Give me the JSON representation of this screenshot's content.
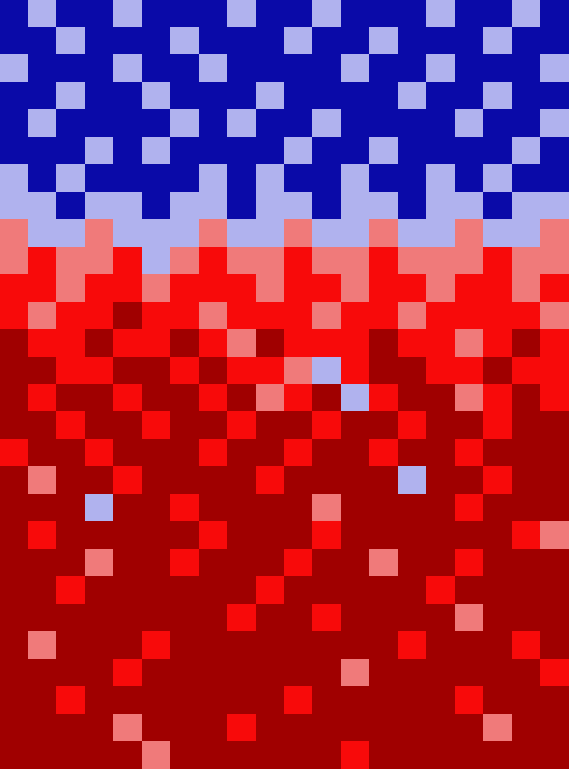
{
  "chart_data": {
    "type": "heatmap",
    "cells": [
      [
        0,
        1,
        0,
        0,
        1,
        0,
        0,
        0,
        1,
        0,
        0,
        1,
        0,
        0,
        0,
        1,
        0,
        0,
        1,
        0
      ],
      [
        0,
        0,
        1,
        0,
        0,
        0,
        1,
        0,
        0,
        0,
        1,
        0,
        0,
        1,
        0,
        0,
        0,
        1,
        0,
        0
      ],
      [
        1,
        0,
        0,
        0,
        1,
        0,
        0,
        1,
        0,
        0,
        0,
        0,
        1,
        0,
        0,
        1,
        0,
        0,
        0,
        1
      ],
      [
        0,
        0,
        1,
        0,
        0,
        1,
        0,
        0,
        0,
        1,
        0,
        0,
        0,
        0,
        1,
        0,
        0,
        1,
        0,
        0
      ],
      [
        0,
        1,
        0,
        0,
        0,
        0,
        1,
        0,
        1,
        0,
        0,
        1,
        0,
        0,
        0,
        0,
        1,
        0,
        0,
        1
      ],
      [
        0,
        0,
        0,
        1,
        0,
        1,
        0,
        0,
        0,
        0,
        1,
        0,
        0,
        1,
        0,
        0,
        0,
        0,
        1,
        0
      ],
      [
        1,
        0,
        1,
        0,
        0,
        0,
        0,
        1,
        0,
        1,
        0,
        0,
        1,
        0,
        0,
        1,
        0,
        1,
        0,
        0
      ],
      [
        1,
        1,
        0,
        1,
        1,
        0,
        1,
        1,
        0,
        1,
        1,
        0,
        1,
        1,
        0,
        1,
        1,
        0,
        1,
        1
      ],
      [
        2,
        1,
        1,
        2,
        1,
        1,
        1,
        2,
        1,
        1,
        2,
        1,
        1,
        2,
        1,
        1,
        2,
        1,
        1,
        2
      ],
      [
        2,
        3,
        2,
        2,
        3,
        1,
        2,
        3,
        2,
        2,
        3,
        2,
        2,
        3,
        2,
        2,
        2,
        3,
        2,
        2
      ],
      [
        3,
        3,
        2,
        3,
        3,
        2,
        3,
        3,
        3,
        2,
        3,
        3,
        2,
        3,
        3,
        2,
        3,
        3,
        2,
        3
      ],
      [
        3,
        2,
        3,
        3,
        4,
        3,
        3,
        2,
        3,
        3,
        3,
        2,
        3,
        3,
        2,
        3,
        3,
        3,
        3,
        2
      ],
      [
        4,
        3,
        3,
        4,
        3,
        3,
        4,
        3,
        2,
        4,
        3,
        3,
        3,
        4,
        3,
        3,
        2,
        3,
        4,
        3
      ],
      [
        4,
        4,
        3,
        3,
        4,
        4,
        3,
        4,
        3,
        3,
        2,
        1,
        3,
        4,
        4,
        3,
        3,
        4,
        3,
        3
      ],
      [
        4,
        3,
        4,
        4,
        3,
        4,
        4,
        3,
        4,
        2,
        3,
        4,
        1,
        3,
        4,
        4,
        2,
        3,
        4,
        3
      ],
      [
        4,
        4,
        3,
        4,
        4,
        3,
        4,
        4,
        3,
        4,
        4,
        3,
        4,
        4,
        3,
        4,
        4,
        3,
        4,
        4
      ],
      [
        3,
        4,
        4,
        3,
        4,
        4,
        4,
        3,
        4,
        4,
        3,
        4,
        4,
        3,
        4,
        4,
        3,
        4,
        4,
        4
      ],
      [
        4,
        2,
        4,
        4,
        3,
        4,
        4,
        4,
        4,
        3,
        4,
        4,
        4,
        4,
        1,
        4,
        4,
        3,
        4,
        4
      ],
      [
        4,
        4,
        4,
        1,
        4,
        4,
        3,
        4,
        4,
        4,
        4,
        2,
        4,
        4,
        4,
        4,
        3,
        4,
        4,
        4
      ],
      [
        4,
        3,
        4,
        4,
        4,
        4,
        4,
        3,
        4,
        4,
        4,
        3,
        4,
        4,
        4,
        4,
        4,
        4,
        3,
        2
      ],
      [
        4,
        4,
        4,
        2,
        4,
        4,
        3,
        4,
        4,
        4,
        3,
        4,
        4,
        2,
        4,
        4,
        3,
        4,
        4,
        4
      ],
      [
        4,
        4,
        3,
        4,
        4,
        4,
        4,
        4,
        4,
        3,
        4,
        4,
        4,
        4,
        4,
        3,
        4,
        4,
        4,
        4
      ],
      [
        4,
        4,
        4,
        4,
        4,
        4,
        4,
        4,
        3,
        4,
        4,
        3,
        4,
        4,
        4,
        4,
        2,
        4,
        4,
        4
      ],
      [
        4,
        2,
        4,
        4,
        4,
        3,
        4,
        4,
        4,
        4,
        4,
        4,
        4,
        4,
        3,
        4,
        4,
        4,
        3,
        4
      ],
      [
        4,
        4,
        4,
        4,
        3,
        4,
        4,
        4,
        4,
        4,
        4,
        4,
        2,
        4,
        4,
        4,
        4,
        4,
        4,
        3
      ],
      [
        4,
        4,
        3,
        4,
        4,
        4,
        4,
        4,
        4,
        4,
        3,
        4,
        4,
        4,
        4,
        4,
        3,
        4,
        4,
        4
      ],
      [
        4,
        4,
        4,
        4,
        2,
        4,
        4,
        4,
        3,
        4,
        4,
        4,
        4,
        4,
        4,
        4,
        4,
        2,
        4,
        4
      ],
      [
        4,
        4,
        4,
        4,
        4,
        2,
        4,
        4,
        4,
        4,
        4,
        4,
        3,
        4,
        4,
        4,
        4,
        4,
        4,
        4
      ]
    ],
    "zlim": [
      0,
      4
    ],
    "colors": [
      "#0a0aa8",
      "#b0b2ee",
      "#f07a7a",
      "#f80a0a",
      "#a00000"
    ],
    "tick_labels": false,
    "grid": false
  }
}
